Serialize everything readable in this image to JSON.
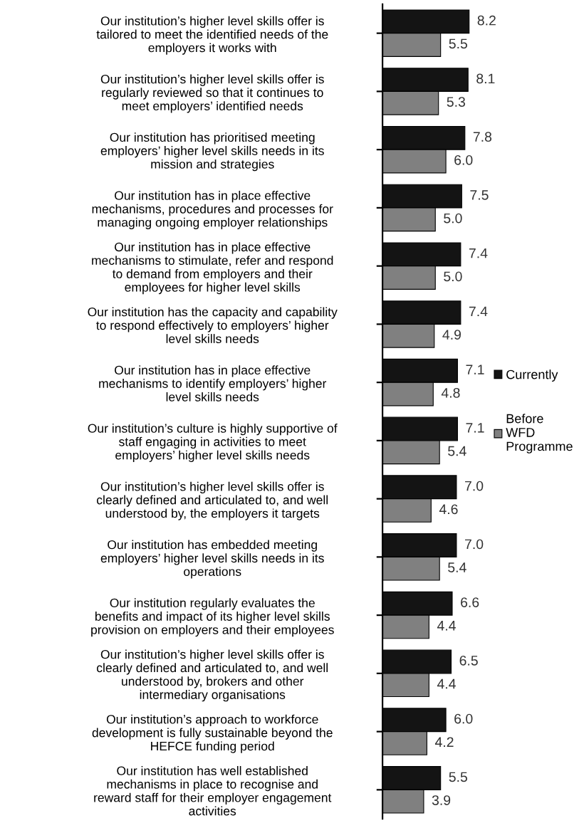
{
  "chart_data": {
    "type": "bar",
    "orientation": "horizontal",
    "legend": "right",
    "grid": false,
    "categories": [
      "Our institution’s higher level skills offer is\ntailored to meet the identified needs of the\nemployers it works with",
      "Our institution’s higher level skills offer is\nregularly reviewed so that it continues to\nmeet employers’ identified needs",
      "Our institution has prioritised meeting\nemployers’ higher level skills needs in its\nmission and strategies",
      "Our institution has in place effective\nmechanisms, procedures and processes for\nmanaging ongoing employer relationships",
      "Our institution has in place effective\nmechanisms to stimulate, refer and respond\nto demand from employers and their\nemployees for higher level skills",
      "Our institution has the capacity and capability\nto respond effectively to employers’ higher\nlevel skills needs",
      "Our institution has in place effective\nmechanisms to identify employers’ higher\nlevel skills needs",
      "Our institution’s culture is highly supportive of\nstaff engaging in activities to meet\nemployers’ higher level skills needs",
      "Our institution’s higher level skills offer is\nclearly defined and articulated to, and well\nunderstood by, the employers it targets",
      "Our institution has embedded meeting\nemployers’ higher level skills needs in its\noperations",
      "Our institution regularly evaluates the\nbenefits and impact of its higher level skills\nprovision on employers and their employees",
      "Our institution’s higher level skills offer is\nclearly defined and articulated to, and well\nunderstood by, brokers and other\nintermediary organisations",
      "Our institution’s approach to workforce\ndevelopment is fully sustainable beyond the\nHEFCE funding period",
      "Our institution has well established\nmechanisms in place to recognise and\nreward staff for their employer engagement\nactivities"
    ],
    "series": [
      {
        "name": "Currently",
        "color": "#141414",
        "values": [
          8.2,
          8.1,
          7.8,
          7.5,
          7.4,
          7.4,
          7.1,
          7.1,
          7.0,
          7.0,
          6.6,
          6.5,
          6.0,
          5.5
        ],
        "value_labels": [
          "8.2",
          "8.1",
          "7.8",
          "7.5",
          "7.4",
          "7.4",
          "7.1",
          "7.1",
          "7.0",
          "7.0",
          "6.6",
          "6.5",
          "6.0",
          "5.5"
        ]
      },
      {
        "name": "Before\nWFD\nProgramme",
        "color": "#808080",
        "values": [
          5.5,
          5.3,
          6.0,
          5.0,
          5.0,
          4.9,
          4.8,
          5.4,
          4.6,
          5.4,
          4.4,
          4.4,
          4.2,
          3.9
        ],
        "value_labels": [
          "5.5",
          "5.3",
          "6.0",
          "5.0",
          "5.0",
          "4.9",
          "4.8",
          "5.4",
          "4.6",
          "5.4",
          "4.4",
          "4.4",
          "4.2",
          "3.9"
        ]
      }
    ]
  }
}
